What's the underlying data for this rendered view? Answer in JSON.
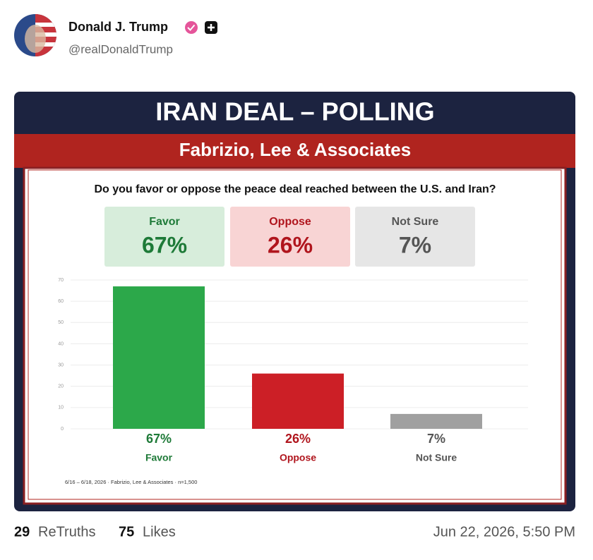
{
  "post": {
    "author_name": "Donald J. Trump",
    "handle": "@realDonaldTrump",
    "image": {
      "title": "IRAN DEAL – POLLING",
      "subtitle": "Fabrizio, Lee & Associates",
      "question": "Do you favor or oppose the peace deal reached between the U.S. and Iran?",
      "footnote": "6/16 – 6/18, 2026 · Fabrizio, Lee & Associates · n=1,500"
    },
    "retruths_count": "29",
    "retruths_label": "ReTruths",
    "likes_count": "75",
    "likes_label": "Likes",
    "timestamp": "Jun 22, 2026, 5:50 PM"
  },
  "chart_data": {
    "type": "bar",
    "categories": [
      "Favor",
      "Oppose",
      "Not Sure"
    ],
    "values": [
      67,
      26,
      7
    ],
    "value_labels": [
      "67%",
      "26%",
      "7%"
    ],
    "colors": [
      "#2ca84a",
      "#cc1f26",
      "#a0a0a0"
    ],
    "label_colors": [
      "#1e7a38",
      "#b0151d",
      "#555555"
    ],
    "box_colors": [
      "#d7eddb",
      "#f8d4d4",
      "#e6e6e6"
    ],
    "ylim": [
      0,
      70
    ],
    "yticks": [
      0,
      10,
      20,
      30,
      40,
      50,
      60,
      70
    ],
    "grid": true
  }
}
